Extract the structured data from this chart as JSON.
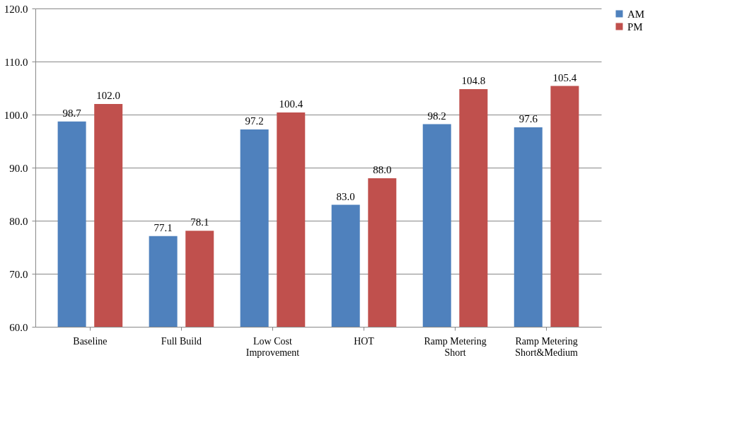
{
  "chart_data": {
    "type": "bar",
    "categories": [
      "Baseline",
      "Full Build",
      "Low Cost Improvement",
      "HOT",
      "Ramp Metering Short",
      "Ramp Metering Short&Medium"
    ],
    "series": [
      {
        "name": "AM",
        "color": "#4f81bd",
        "values": [
          98.7,
          77.1,
          97.2,
          83.0,
          98.2,
          97.6
        ],
        "value_labels": [
          "98.7",
          "77.1",
          "97.2",
          "83.0",
          "98.2",
          "97.6"
        ]
      },
      {
        "name": "PM",
        "color": "#c0504d",
        "values": [
          102.0,
          78.1,
          100.4,
          88.0,
          104.8,
          105.4
        ],
        "value_labels": [
          "102.0",
          "78.1",
          "100.4",
          "88.0",
          "104.8",
          "105.4"
        ]
      }
    ],
    "ylim": [
      60,
      120
    ],
    "yticks": [
      {
        "value": 60,
        "label": "60.0"
      },
      {
        "value": 70,
        "label": "70.0"
      },
      {
        "value": 80,
        "label": "80.0"
      },
      {
        "value": 90,
        "label": "90.0"
      },
      {
        "value": 100,
        "label": "100.0"
      },
      {
        "value": 110,
        "label": "110.0"
      },
      {
        "value": 120,
        "label": "120.0"
      }
    ],
    "grid": "y",
    "legend": "right"
  }
}
